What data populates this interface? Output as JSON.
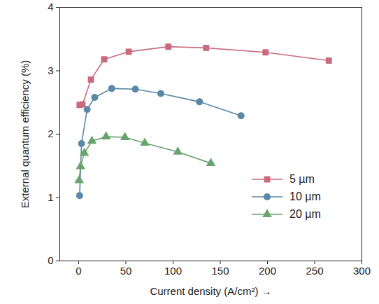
{
  "chart_data": {
    "type": "line",
    "x_label": "Current density (A/cm²)",
    "y_label": "External quantum efficiency (%)",
    "xlim": [
      -20,
      300
    ],
    "xticks": [
      0,
      50,
      100,
      150,
      200,
      250,
      300
    ],
    "ylim": [
      0,
      4
    ],
    "yticks": [
      0,
      1,
      2,
      3,
      4
    ],
    "grid": false,
    "legend": "right",
    "series": [
      {
        "name": "5 µm",
        "color": "#c96a80",
        "marker": "square",
        "x": [
          1,
          4,
          13,
          27,
          53,
          95,
          135,
          198,
          265
        ],
        "values": [
          2.46,
          2.47,
          2.86,
          3.18,
          3.3,
          3.38,
          3.36,
          3.29,
          3.16
        ]
      },
      {
        "name": "10 µm",
        "color": "#5a88a6",
        "marker": "circle",
        "x": [
          1,
          3,
          9,
          17,
          35,
          60,
          87,
          128,
          172
        ],
        "values": [
          1.03,
          1.85,
          2.39,
          2.58,
          2.72,
          2.71,
          2.64,
          2.51,
          2.29
        ]
      },
      {
        "name": "20 µm",
        "color": "#69a36e",
        "marker": "triangle",
        "x": [
          0.5,
          2,
          6,
          14,
          29,
          49,
          70,
          105,
          140
        ],
        "values": [
          1.27,
          1.49,
          1.7,
          1.89,
          1.96,
          1.95,
          1.86,
          1.72,
          1.54
        ]
      }
    ]
  }
}
